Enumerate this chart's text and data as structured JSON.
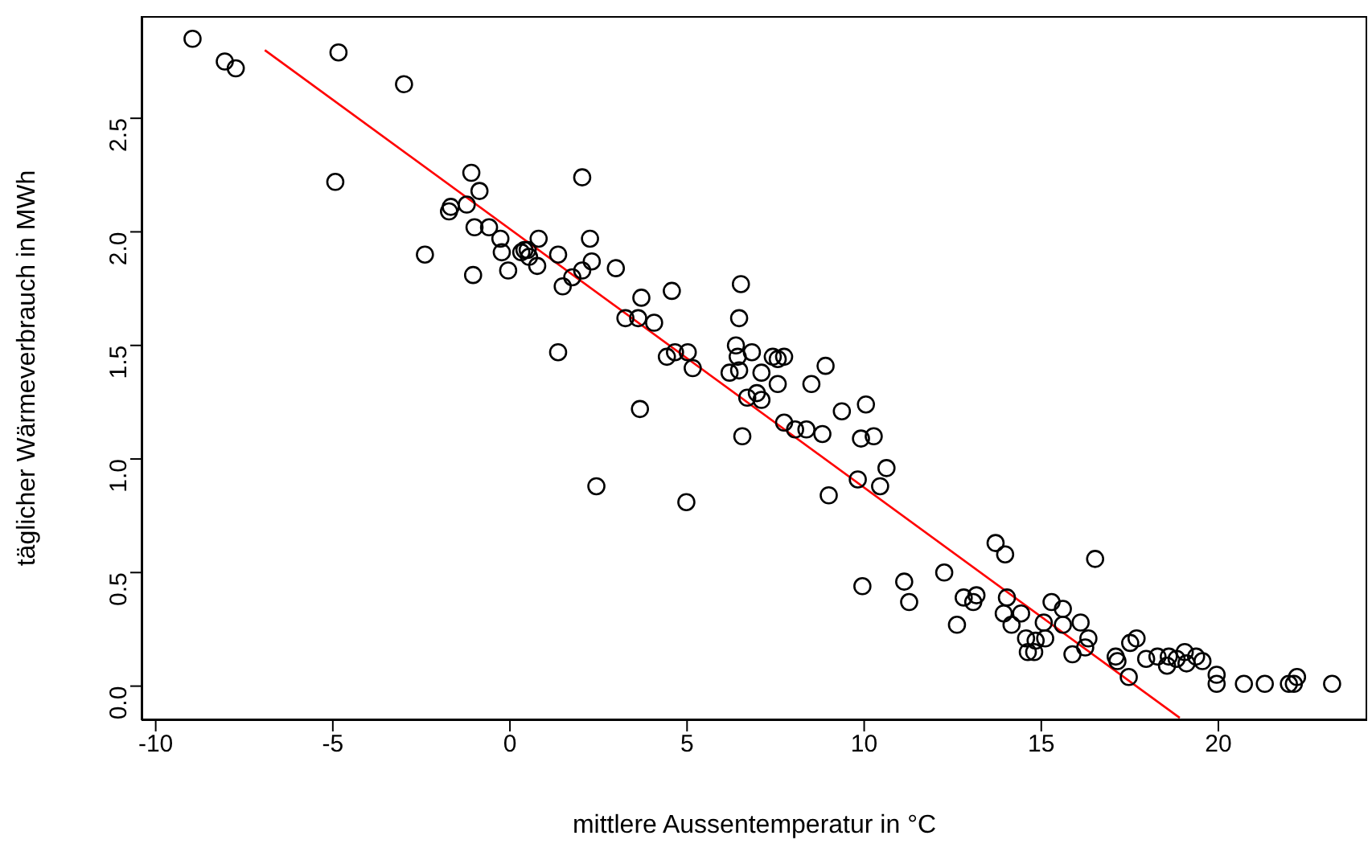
{
  "chart_data": {
    "type": "scatter",
    "xlabel": "mittlere Aussentemperatur in °C",
    "ylabel": "täglicher Wärmeverbrauch in MWh",
    "xlim": [
      -10.4,
      24.2
    ],
    "ylim": [
      -0.15,
      2.95
    ],
    "xticks": [
      -10,
      -5,
      0,
      5,
      10,
      15,
      20
    ],
    "yticks": [
      {
        "value": 0,
        "label": "0.0"
      },
      0.5,
      {
        "value": 1,
        "label": "1.0"
      },
      1.5,
      {
        "value": 2,
        "label": "2.0"
      },
      2.5
    ],
    "grid": false,
    "legend": false,
    "series": [
      {
        "marker": "circle",
        "color": "#000000",
        "x": [
          -8.96,
          -8.05,
          -7.74,
          -4.84,
          -4.93,
          -2.99,
          -2.4,
          -1.72,
          -1.67,
          -1.09,
          -1.22,
          -1.0,
          -1.04,
          -0.86,
          -0.59,
          -0.27,
          -0.23,
          -0.05,
          0.32,
          0.41,
          0.5,
          0.54,
          0.81,
          0.77,
          1.36,
          1.49,
          1.76,
          2.04,
          2.04,
          2.26,
          2.31,
          2.99,
          1.36,
          3.26,
          3.62,
          3.71,
          4.07,
          4.57,
          4.43,
          4.66,
          5.02,
          5.16,
          3.67,
          2.44,
          4.98,
          6.52,
          6.47,
          6.38,
          6.43,
          6.2,
          6.47,
          6.83,
          6.7,
          6.97,
          7.1,
          7.1,
          7.42,
          7.56,
          7.74,
          7.56,
          6.56,
          7.74,
          8.05,
          8.37,
          8.51,
          8.82,
          8.91,
          9.0,
          9.37,
          9.82,
          9.91,
          10.05,
          10.27,
          10.45,
          10.63,
          9.95,
          11.13,
          11.27,
          12.26,
          12.62,
          12.81,
          13.08,
          13.17,
          13.71,
          13.98,
          14.03,
          13.94,
          14.16,
          14.43,
          14.57,
          14.62,
          14.84,
          14.8,
          15.07,
          15.11,
          15.29,
          15.61,
          15.61,
          15.88,
          16.11,
          16.24,
          16.33,
          16.52,
          17.1,
          17.15,
          17.47,
          17.51,
          17.69,
          17.96,
          18.28,
          18.55,
          18.6,
          18.82,
          19.05,
          19.1,
          19.37,
          19.55,
          19.95,
          19.95,
          20.72,
          21.31,
          21.99,
          22.13,
          22.22,
          23.21
        ],
        "values": [
          2.85,
          2.75,
          2.72,
          2.79,
          2.22,
          2.65,
          1.9,
          2.09,
          2.11,
          2.26,
          2.12,
          2.02,
          1.81,
          2.18,
          2.02,
          1.97,
          1.91,
          1.83,
          1.91,
          1.92,
          1.92,
          1.89,
          1.97,
          1.85,
          1.9,
          1.76,
          1.8,
          2.24,
          1.83,
          1.97,
          1.87,
          1.84,
          1.47,
          1.62,
          1.62,
          1.71,
          1.6,
          1.74,
          1.45,
          1.47,
          1.47,
          1.4,
          1.22,
          0.88,
          0.81,
          1.77,
          1.62,
          1.5,
          1.45,
          1.38,
          1.39,
          1.47,
          1.27,
          1.29,
          1.26,
          1.38,
          1.45,
          1.44,
          1.45,
          1.33,
          1.1,
          1.16,
          1.13,
          1.13,
          1.33,
          1.11,
          1.41,
          0.84,
          1.21,
          0.91,
          1.09,
          1.24,
          1.1,
          0.88,
          0.96,
          0.44,
          0.46,
          0.37,
          0.5,
          0.27,
          0.39,
          0.37,
          0.4,
          0.63,
          0.58,
          0.39,
          0.32,
          0.27,
          0.32,
          0.21,
          0.15,
          0.2,
          0.15,
          0.28,
          0.21,
          0.37,
          0.34,
          0.27,
          0.14,
          0.28,
          0.17,
          0.21,
          0.56,
          0.13,
          0.11,
          0.04,
          0.19,
          0.21,
          0.12,
          0.13,
          0.09,
          0.13,
          0.12,
          0.15,
          0.1,
          0.13,
          0.11,
          0.05,
          0.01,
          0.01,
          0.01,
          0.01,
          0.01,
          0.04,
          0.01
        ]
      },
      {
        "type": "line",
        "marker": "none",
        "color": "#ff0000",
        "x": [
          -6.92,
          18.91
        ],
        "values": [
          2.8,
          -0.14
        ]
      }
    ]
  }
}
